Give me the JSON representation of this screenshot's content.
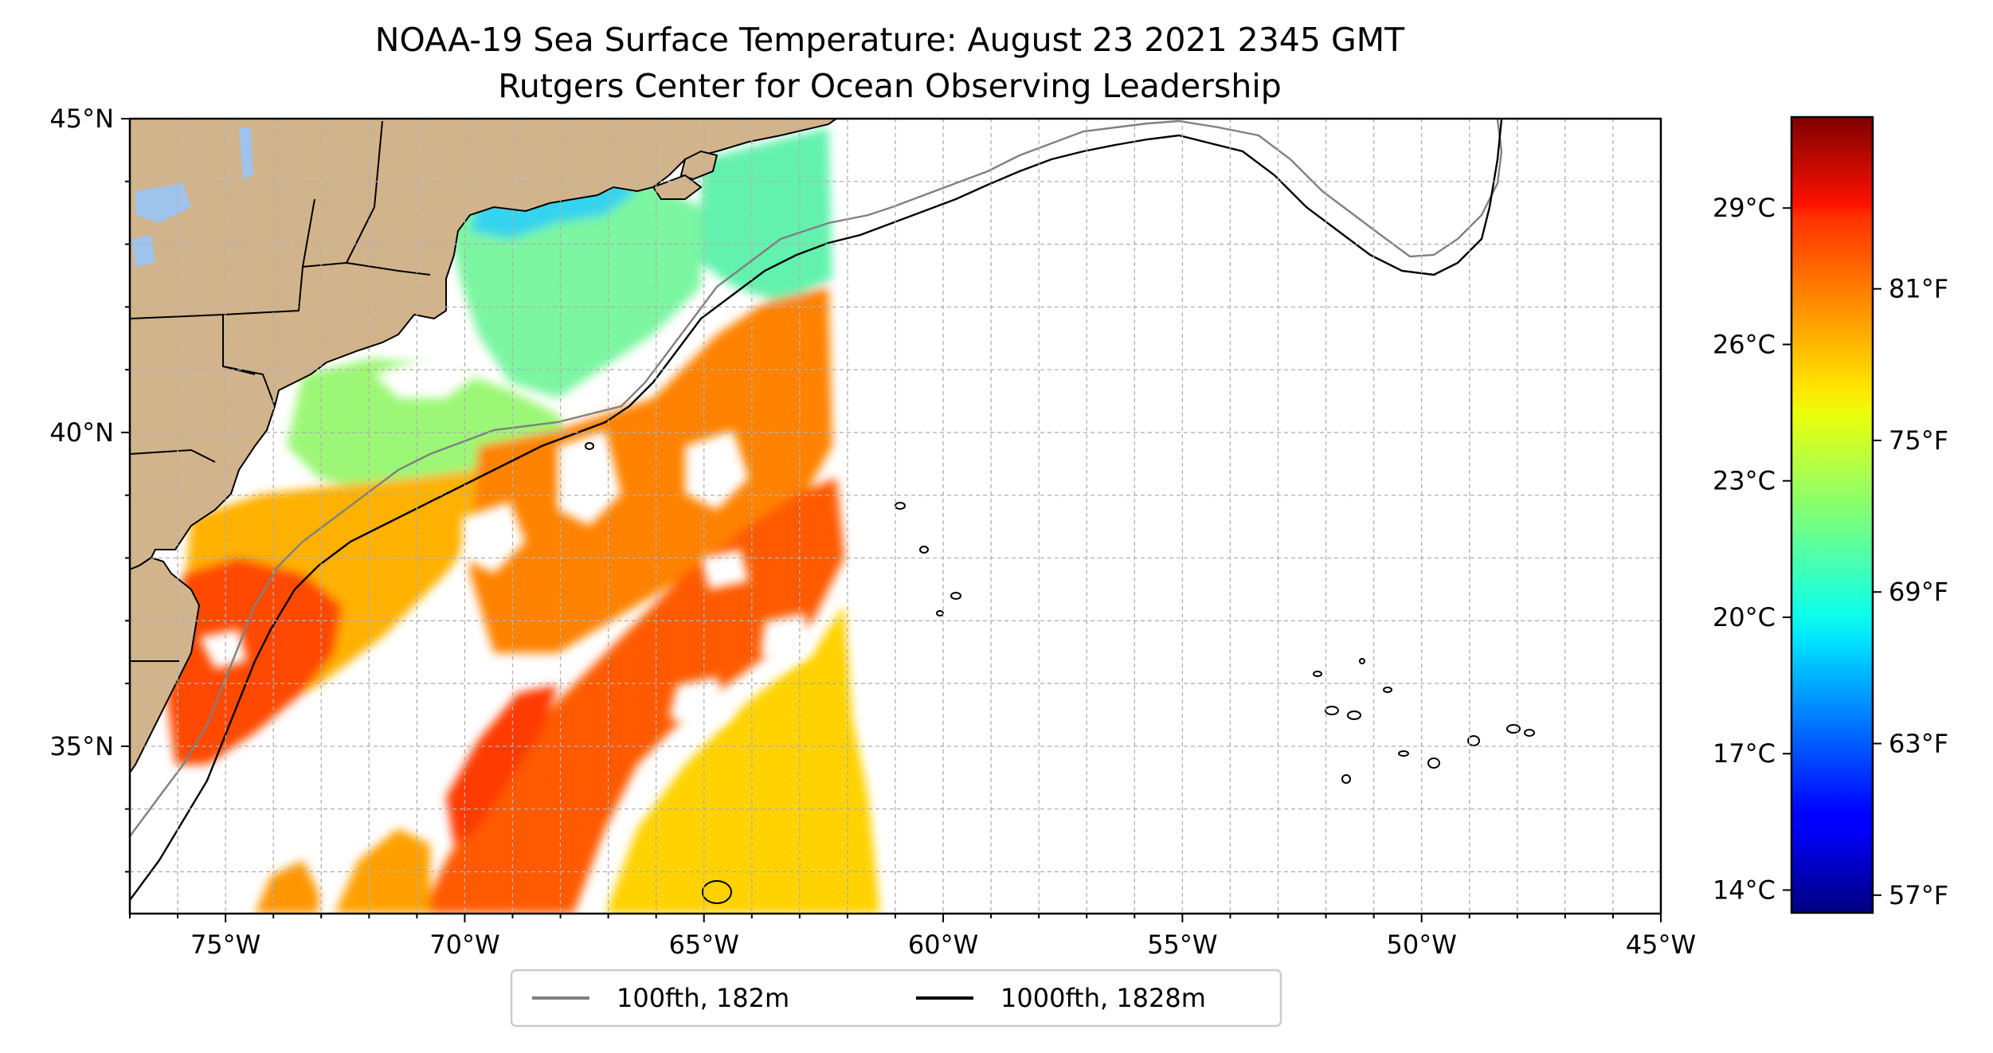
{
  "title": {
    "line1": "NOAA-19 Sea Surface Temperature: August 23 2021 2345 GMT",
    "line2": "Rutgers Center for Ocean Observing Leadership"
  },
  "map": {
    "lon_range": [
      -77,
      -45
    ],
    "lat_range": [
      32.333,
      45
    ],
    "grid": true,
    "colors": {
      "land": "#d2b48c",
      "lakes": "#9fc3ea",
      "no_data": "#ffffff",
      "isobath_100fth": "#808080",
      "isobath_1000fth": "#000000",
      "coast": "#000000"
    },
    "x_ticks": [
      {
        "value": -75,
        "label": "75°W"
      },
      {
        "value": -70,
        "label": "70°W"
      },
      {
        "value": -65,
        "label": "65°W"
      },
      {
        "value": -60,
        "label": "60°W"
      },
      {
        "value": -55,
        "label": "55°W"
      },
      {
        "value": -50,
        "label": "50°W"
      },
      {
        "value": -45,
        "label": "45°W"
      }
    ],
    "y_ticks": [
      {
        "value": 45,
        "label": "45°N"
      },
      {
        "value": 40,
        "label": "40°N"
      },
      {
        "value": 35,
        "label": "35°N"
      }
    ]
  },
  "colorbar": {
    "colormap": "jet",
    "range_c": [
      13.5,
      31
    ],
    "celsius_ticks": [
      {
        "value": 29,
        "label": "29°C"
      },
      {
        "value": 26,
        "label": "26°C"
      },
      {
        "value": 23,
        "label": "23°C"
      },
      {
        "value": 20,
        "label": "20°C"
      },
      {
        "value": 17,
        "label": "17°C"
      },
      {
        "value": 14,
        "label": "14°C"
      }
    ],
    "fahrenheit_ticks": [
      {
        "value": 81,
        "label": "81°F"
      },
      {
        "value": 75,
        "label": "75°F"
      },
      {
        "value": 69,
        "label": "69°F"
      },
      {
        "value": 63,
        "label": "63°F"
      },
      {
        "value": 57,
        "label": "57°F"
      }
    ]
  },
  "legend": {
    "location": "bottom-center",
    "entries": [
      {
        "label": "100fth, 182m",
        "color": "#808080"
      },
      {
        "label": "1000fth, 1828m",
        "color": "#000000"
      }
    ]
  }
}
